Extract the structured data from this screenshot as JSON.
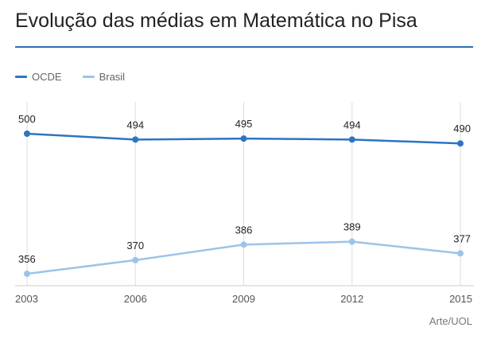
{
  "header": {
    "title": "Evolução das médias em Matemática no Pisa"
  },
  "credit": "Arte/UOL",
  "colors": {
    "accent": "#2d6fb4",
    "ocde": "#2d74c2",
    "brasil": "#9cc4ea",
    "grid": "#dddddd"
  },
  "chart_data": {
    "type": "line",
    "title": "Evolução das médias em Matemática no Pisa",
    "xlabel": "",
    "ylabel": "",
    "categories": [
      "2003",
      "2006",
      "2009",
      "2012",
      "2015"
    ],
    "series": [
      {
        "name": "OCDE",
        "values": [
          500,
          494,
          495,
          494,
          490
        ]
      },
      {
        "name": "Brasil",
        "values": [
          356,
          370,
          386,
          389,
          377
        ]
      }
    ],
    "legend_position": "top-left",
    "grid": "vertical"
  }
}
